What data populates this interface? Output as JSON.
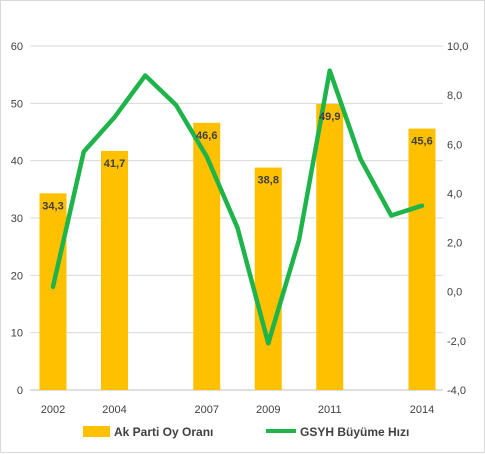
{
  "chart_data": {
    "type": "bar",
    "categories": [
      "2002",
      "2004",
      "2007",
      "2009",
      "2011",
      "2014"
    ],
    "series": [
      {
        "name": "Ak Parti Oy Oranı",
        "type": "bar",
        "axis": "left",
        "color": "#FFC000",
        "x": [
          "2002",
          "2004",
          "2007",
          "2009",
          "2011",
          "2014"
        ],
        "values": [
          34.3,
          41.7,
          46.6,
          38.8,
          49.9,
          45.6
        ],
        "value_labels": [
          "34,3",
          "41,7",
          "46,6",
          "38,8",
          "49,9",
          "45,6"
        ]
      },
      {
        "name": "GSYH Büyüme Hızı",
        "type": "line",
        "axis": "right",
        "color": "#1FB44A",
        "x": [
          "2002",
          "2003",
          "2004",
          "2005",
          "2006",
          "2007",
          "2008",
          "2009",
          "2010",
          "2011",
          "2012",
          "2013",
          "2014"
        ],
        "values": [
          0.2,
          5.7,
          7.1,
          8.8,
          7.6,
          5.5,
          2.6,
          -2.1,
          2.1,
          9.0,
          5.4,
          3.1,
          3.5
        ]
      }
    ],
    "y_left": {
      "ylim": [
        0,
        60
      ],
      "ticks": [
        "0",
        "10",
        "20",
        "30",
        "40",
        "50",
        "60"
      ]
    },
    "y_right": {
      "ylim": [
        -4,
        10
      ],
      "ticks": [
        "-4,0",
        "-2,0",
        "0,0",
        "2,0",
        "4,0",
        "6,0",
        "8,0",
        "10,0"
      ]
    },
    "grid": true,
    "legend": "bottom"
  }
}
